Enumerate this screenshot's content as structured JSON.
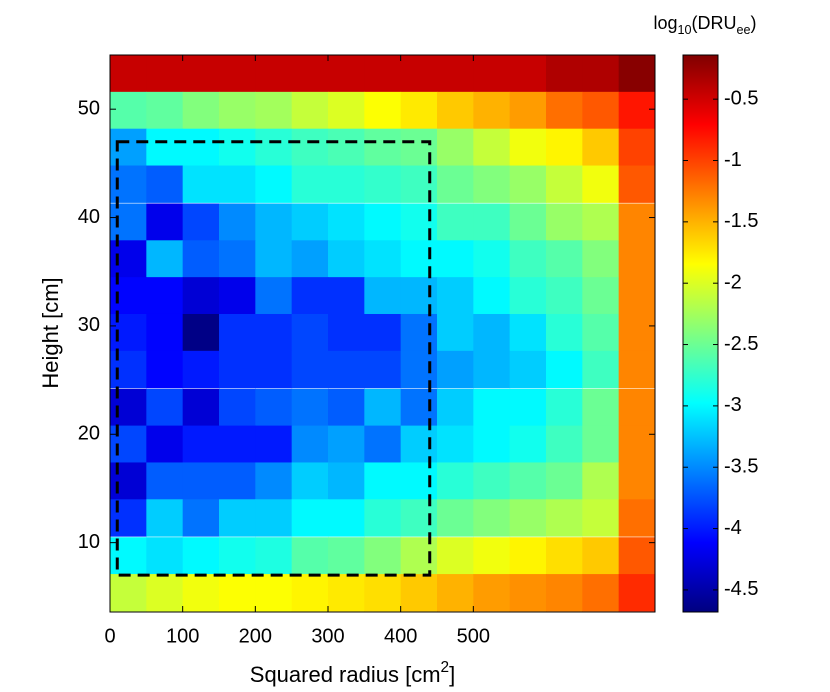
{
  "chart_data": {
    "type": "heatmap",
    "colormap": "jet",
    "x_label_parts": [
      {
        "text": "Squared radius [cm"
      },
      {
        "text": "2",
        "sup": true
      },
      {
        "text": "]"
      }
    ],
    "y_label": "Height [cm]",
    "colorbar_label_parts": [
      {
        "text": "log"
      },
      {
        "text": "10",
        "sub": true
      },
      {
        "text": "(DRU"
      },
      {
        "text": "ee",
        "sub": true
      },
      {
        "text": ")"
      }
    ],
    "x": [
      25,
      75,
      125,
      175,
      225,
      275,
      325,
      375,
      425,
      475,
      525,
      575,
      625,
      675,
      725
    ],
    "y": [
      53.3,
      49.9,
      46.5,
      43.1,
      39.6,
      36.2,
      32.8,
      29.4,
      26.0,
      22.5,
      19.1,
      15.7,
      12.3,
      8.8,
      5.4
    ],
    "z": [
      [
        -0.46,
        -0.46,
        -0.46,
        -0.46,
        -0.46,
        -0.46,
        -0.46,
        -0.46,
        -0.46,
        -0.46,
        -0.46,
        -0.46,
        -0.35,
        -0.35,
        -0.18
      ],
      [
        -2.6,
        -2.55,
        -2.4,
        -2.3,
        -2.25,
        -2.1,
        -2.0,
        -1.85,
        -1.75,
        -1.6,
        -1.5,
        -1.4,
        -1.2,
        -1.1,
        -0.8
      ],
      [
        -3.4,
        -3.0,
        -3.0,
        -2.9,
        -2.8,
        -2.7,
        -2.65,
        -2.55,
        -2.5,
        -2.3,
        -2.1,
        -1.9,
        -1.8,
        -1.6,
        -1.0
      ],
      [
        -3.6,
        -3.7,
        -3.1,
        -3.1,
        -3.0,
        -2.8,
        -2.8,
        -2.75,
        -2.7,
        -2.5,
        -2.4,
        -2.3,
        -2.1,
        -1.9,
        -1.1
      ],
      [
        -3.6,
        -4.2,
        -3.8,
        -3.5,
        -3.3,
        -3.2,
        -3.1,
        -3.0,
        -2.9,
        -2.7,
        -2.7,
        -2.5,
        -2.3,
        -2.2,
        -1.3
      ],
      [
        -4.2,
        -3.3,
        -3.7,
        -3.6,
        -3.3,
        -3.4,
        -3.2,
        -3.1,
        -3.0,
        -3.0,
        -2.9,
        -2.7,
        -2.6,
        -2.4,
        -1.3
      ],
      [
        -4.1,
        -4.1,
        -4.3,
        -4.2,
        -3.6,
        -3.9,
        -3.9,
        -3.3,
        -3.3,
        -3.2,
        -3.0,
        -2.8,
        -2.7,
        -2.5,
        -1.3
      ],
      [
        -4.0,
        -4.1,
        -4.65,
        -3.9,
        -3.9,
        -3.8,
        -3.9,
        -3.9,
        -3.6,
        -3.2,
        -3.3,
        -3.1,
        -2.8,
        -2.6,
        -1.3
      ],
      [
        -3.9,
        -4.1,
        -4.0,
        -3.9,
        -3.9,
        -3.8,
        -3.8,
        -3.8,
        -3.6,
        -3.4,
        -3.3,
        -3.2,
        -3.0,
        -2.7,
        -1.3
      ],
      [
        -4.3,
        -3.8,
        -4.3,
        -3.8,
        -3.7,
        -3.6,
        -3.7,
        -3.3,
        -3.6,
        -3.2,
        -3.0,
        -3.0,
        -2.8,
        -2.5,
        -1.3
      ],
      [
        -3.8,
        -4.2,
        -4.0,
        -4.0,
        -4.0,
        -3.5,
        -3.4,
        -3.6,
        -3.2,
        -3.1,
        -3.0,
        -2.9,
        -2.7,
        -2.5,
        -1.3
      ],
      [
        -4.3,
        -3.7,
        -3.7,
        -3.7,
        -3.5,
        -3.2,
        -3.3,
        -3.0,
        -3.0,
        -2.8,
        -2.7,
        -2.6,
        -2.5,
        -2.2,
        -1.3
      ],
      [
        -3.9,
        -3.2,
        -3.6,
        -3.2,
        -3.2,
        -3.0,
        -3.0,
        -2.8,
        -2.7,
        -2.5,
        -2.4,
        -2.3,
        -2.2,
        -2.1,
        -1.2
      ],
      [
        -3.0,
        -3.1,
        -3.0,
        -2.9,
        -2.85,
        -2.6,
        -2.55,
        -2.4,
        -2.2,
        -2.0,
        -1.9,
        -1.8,
        -1.7,
        -1.6,
        -1.1
      ],
      [
        -2.1,
        -2.0,
        -1.9,
        -1.85,
        -1.85,
        -1.8,
        -1.75,
        -1.7,
        -1.6,
        -1.5,
        -1.4,
        -1.35,
        -1.3,
        -1.2,
        -0.9
      ]
    ],
    "xlim": [
      0,
      750
    ],
    "ylim": [
      3.6,
      55
    ],
    "clim": [
      -4.68,
      -0.14
    ],
    "xticks": [
      0,
      100,
      200,
      300,
      400,
      500
    ],
    "yticks": [
      10,
      20,
      30,
      40,
      50
    ],
    "cticks": [
      -0.5,
      -1,
      -1.5,
      -2,
      -2.5,
      -3,
      -3.5,
      -4,
      -4.5
    ],
    "box": {
      "x": [
        10,
        440
      ],
      "y": [
        7,
        47
      ]
    }
  }
}
